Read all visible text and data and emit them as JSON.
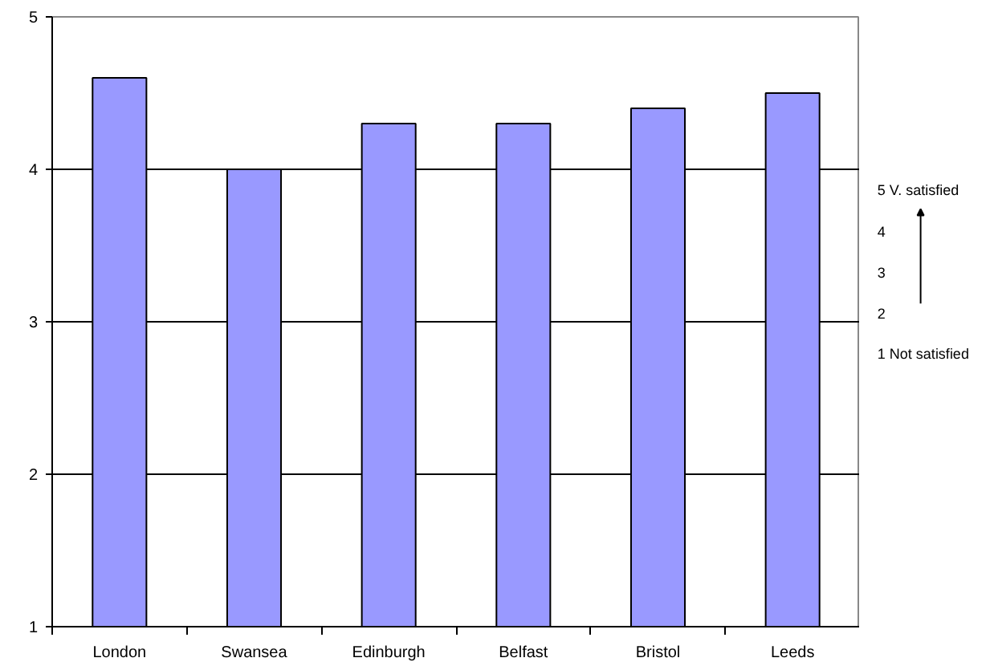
{
  "chart_data": {
    "type": "bar",
    "categories": [
      "London",
      "Swansea",
      "Edinburgh",
      "Belfast",
      "Bristol",
      "Leeds"
    ],
    "values": [
      4.6,
      4.0,
      4.3,
      4.3,
      4.4,
      4.5
    ],
    "color": "#9999ff",
    "ylim": [
      1,
      5
    ],
    "yticks": [
      1,
      2,
      3,
      4,
      5
    ],
    "grid": "y",
    "annotations": [
      "5  V. satisfied",
      "4",
      "3",
      "2",
      "1  Not satisfied"
    ]
  }
}
